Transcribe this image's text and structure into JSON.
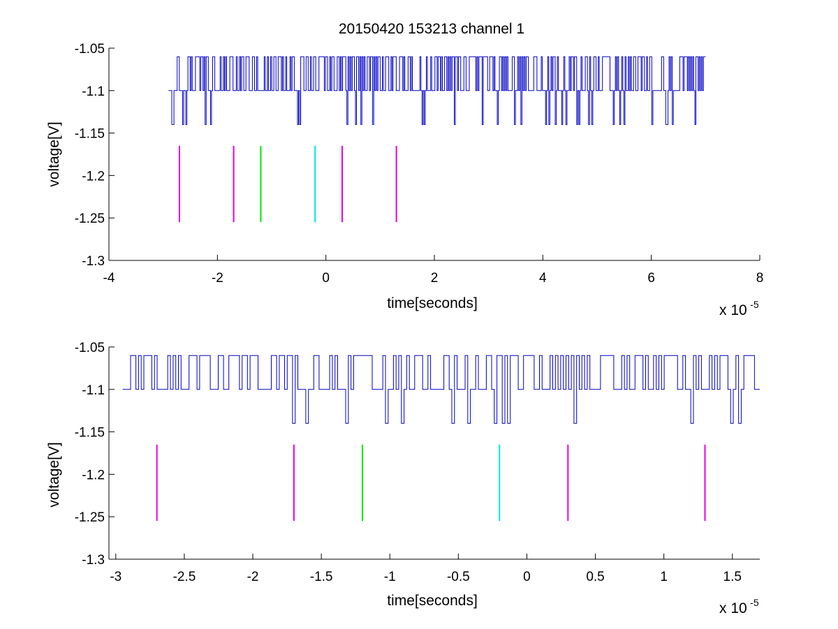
{
  "chart_data": [
    {
      "type": "line",
      "title": "20150420 153213 channel 1",
      "xlabel": "time[seconds]",
      "ylabel": "voltage[V]",
      "x_multiplier_label": {
        "base": "x 10",
        "exponent": "-5"
      },
      "xlim": [
        -4,
        8
      ],
      "ylim": [
        -1.3,
        -1.05
      ],
      "xticks": [
        -4,
        -2,
        0,
        2,
        4,
        6,
        8
      ],
      "xtick_labels": [
        "-4",
        "-2",
        "0",
        "2",
        "4",
        "6",
        "8"
      ],
      "yticks": [
        -1.3,
        -1.25,
        -1.2,
        -1.15,
        -1.1,
        -1.05
      ],
      "ytick_labels": [
        "-1.3",
        "-1.25",
        "-1.2",
        "-1.15",
        "-1.1",
        "-1.05"
      ],
      "grid": false,
      "signal": {
        "color": "#0000c8",
        "x_start": -2.9,
        "x_end": 7.0,
        "levels": [
          -1.14,
          -1.1,
          -1.06
        ],
        "baseline": -1.1,
        "samples": 500
      },
      "markers": [
        {
          "x": -2.7,
          "y0": -1.255,
          "y1": -1.165,
          "color": "#e600e6"
        },
        {
          "x": -1.7,
          "y0": -1.255,
          "y1": -1.165,
          "color": "#e600e6"
        },
        {
          "x": -1.2,
          "y0": -1.255,
          "y1": -1.165,
          "color": "#00e600"
        },
        {
          "x": -0.2,
          "y0": -1.255,
          "y1": -1.165,
          "color": "#00e6e6"
        },
        {
          "x": 0.3,
          "y0": -1.255,
          "y1": -1.165,
          "color": "#e600e6"
        },
        {
          "x": 1.3,
          "y0": -1.255,
          "y1": -1.165,
          "color": "#e600e6"
        }
      ]
    },
    {
      "type": "line",
      "title": "",
      "xlabel": "time[seconds]",
      "ylabel": "voltage[V]",
      "x_multiplier_label": {
        "base": "x 10",
        "exponent": "-5"
      },
      "xlim": [
        -3.05,
        1.7
      ],
      "ylim": [
        -1.3,
        -1.05
      ],
      "xticks": [
        -3,
        -2.5,
        -2,
        -1.5,
        -1,
        -0.5,
        0,
        0.5,
        1,
        1.5
      ],
      "xtick_labels": [
        "-3",
        "-2.5",
        "-2",
        "-1.5",
        "-1",
        "-0.5",
        "0",
        "0.5",
        "1",
        "1.5"
      ],
      "yticks": [
        -1.3,
        -1.25,
        -1.2,
        -1.15,
        -1.1,
        -1.05
      ],
      "ytick_labels": [
        "-1.3",
        "-1.25",
        "-1.2",
        "-1.15",
        "-1.1",
        "-1.05"
      ],
      "grid": false,
      "signal": {
        "color": "#0000c8",
        "x_start": -2.95,
        "x_end": 1.7,
        "levels": [
          -1.14,
          -1.1,
          -1.06
        ],
        "baseline": -1.1,
        "samples": 240
      },
      "markers": [
        {
          "x": -2.7,
          "y0": -1.255,
          "y1": -1.165,
          "color": "#e600e6"
        },
        {
          "x": -1.7,
          "y0": -1.255,
          "y1": -1.165,
          "color": "#e600e6"
        },
        {
          "x": -1.2,
          "y0": -1.255,
          "y1": -1.165,
          "color": "#00e600"
        },
        {
          "x": -0.2,
          "y0": -1.255,
          "y1": -1.165,
          "color": "#00e6e6"
        },
        {
          "x": 0.3,
          "y0": -1.255,
          "y1": -1.165,
          "color": "#e600e6"
        },
        {
          "x": 1.3,
          "y0": -1.255,
          "y1": -1.165,
          "color": "#e600e6"
        }
      ]
    }
  ]
}
